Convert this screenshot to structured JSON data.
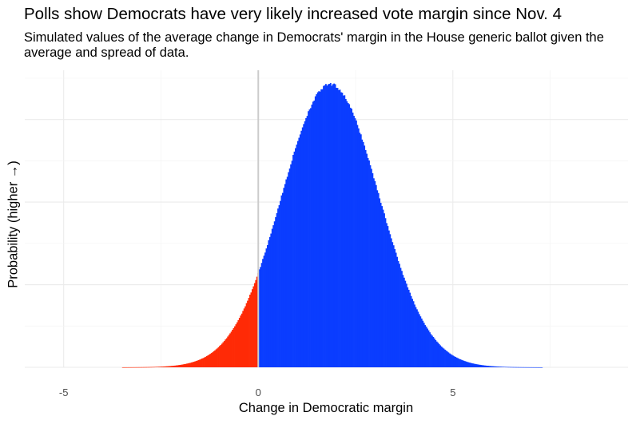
{
  "chart_data": {
    "type": "histogram",
    "title": "Polls show Democrats have very likely increased vote margin since Nov. 4",
    "subtitle": "Simulated values of the average change in Democrats' margin in the House generic ballot given the average and spread of data.",
    "xlabel": "Change in Democratic margin",
    "ylabel": "Probability (higher →)",
    "xlim": [
      -6.0,
      9.5
    ],
    "ylim": [
      0,
      1.05
    ],
    "x_ticks": [
      {
        "value": -5,
        "label": "-5"
      },
      {
        "value": 0,
        "label": "0"
      },
      {
        "value": 5,
        "label": "5"
      }
    ],
    "distribution": {
      "mean": 1.85,
      "sd": 1.25,
      "x_min": -3.5,
      "x_max": 7.3,
      "bin_width": 0.03
    },
    "series": [
      {
        "name": "negative change",
        "range": [
          -3.5,
          0
        ],
        "color": "#ff2a06"
      },
      {
        "name": "positive change",
        "range": [
          0,
          7.3
        ],
        "color": "#0a3dff"
      }
    ],
    "reference_line": {
      "x": 0,
      "color": "#cccccc"
    },
    "grid": true
  }
}
